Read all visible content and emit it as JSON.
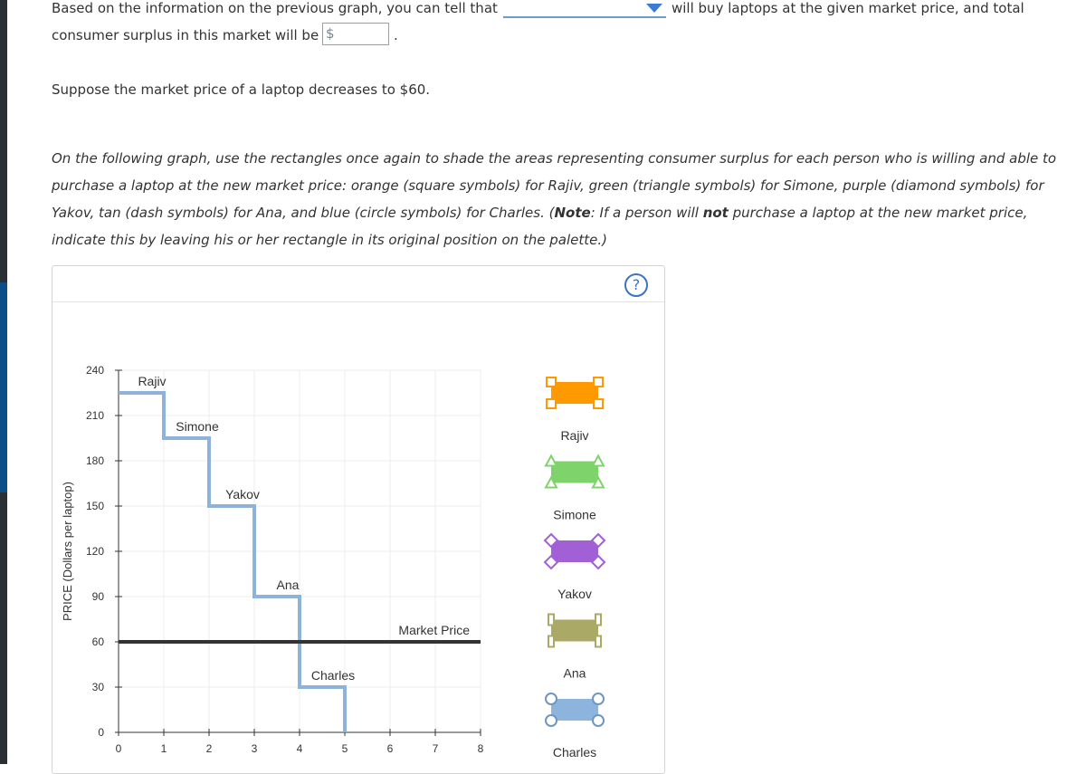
{
  "top": {
    "line1_prefix": "Based on the information on the previous graph, you can tell that",
    "line1_suffix": "will buy laptops at the given market price, and total",
    "line2_prefix": "consumer surplus in this market will be",
    "line2_suffix": ".",
    "dropdown_value": "",
    "currency_symbol": "$",
    "surplus_value": ""
  },
  "scenario": "Suppose the market price of a laptop decreases to $60.",
  "instructions": {
    "part1": "On the following graph, use the rectangles once again to shade the areas representing consumer surplus for each person who is willing and able to purchase a laptop at the new market price: orange (square symbols) for Rajiv, green (triangle symbols) for Simone, purple (diamond symbols) for Yakov, tan (dash symbols) for Ana, and blue (circle symbols) for Charles. (",
    "note_label": "Note",
    "part2": ": If a person will ",
    "not_word": "not",
    "part3": " purchase a laptop at the new market price, indicate this by leaving his or her rectangle in its original position on the palette.)"
  },
  "help_icon": "?",
  "chart_data": {
    "type": "line",
    "ylabel": "PRICE (Dollars per laptop)",
    "xlabel": "",
    "xlim": [
      0,
      8
    ],
    "ylim": [
      0,
      240
    ],
    "x_ticks": [
      0,
      1,
      2,
      3,
      4,
      5,
      6,
      7,
      8
    ],
    "y_ticks": [
      0,
      30,
      60,
      90,
      120,
      150,
      180,
      210,
      240
    ],
    "grid": true,
    "demand_steps": [
      {
        "x0": 0,
        "x1": 1,
        "price": 225,
        "person": "Rajiv"
      },
      {
        "x0": 1,
        "x1": 2,
        "price": 195,
        "person": "Simone"
      },
      {
        "x0": 2,
        "x1": 3,
        "price": 150,
        "person": "Yakov"
      },
      {
        "x0": 3,
        "x1": 4,
        "price": 90,
        "person": "Ana"
      },
      {
        "x0": 4,
        "x1": 5,
        "price": 30,
        "person": "Charles"
      }
    ],
    "market_price": 60,
    "market_price_label": "Market Price",
    "demand_color": "#8db3da",
    "market_color": "#333333"
  },
  "palette": [
    {
      "name": "Rajiv",
      "color": "#ff9900",
      "marker": "square",
      "marker_color": "#ff9900"
    },
    {
      "name": "Simone",
      "color": "#7fd36b",
      "marker": "triangle",
      "marker_color": "#7fd36b"
    },
    {
      "name": "Yakov",
      "color": "#a260d6",
      "marker": "diamond",
      "marker_color": "#a260d6"
    },
    {
      "name": "Ana",
      "color": "#aaaa66",
      "marker": "dash",
      "marker_color": "#aaaa66"
    },
    {
      "name": "Charles",
      "color": "#8cb4dc",
      "marker": "circle",
      "marker_color": "#6f96be"
    }
  ]
}
